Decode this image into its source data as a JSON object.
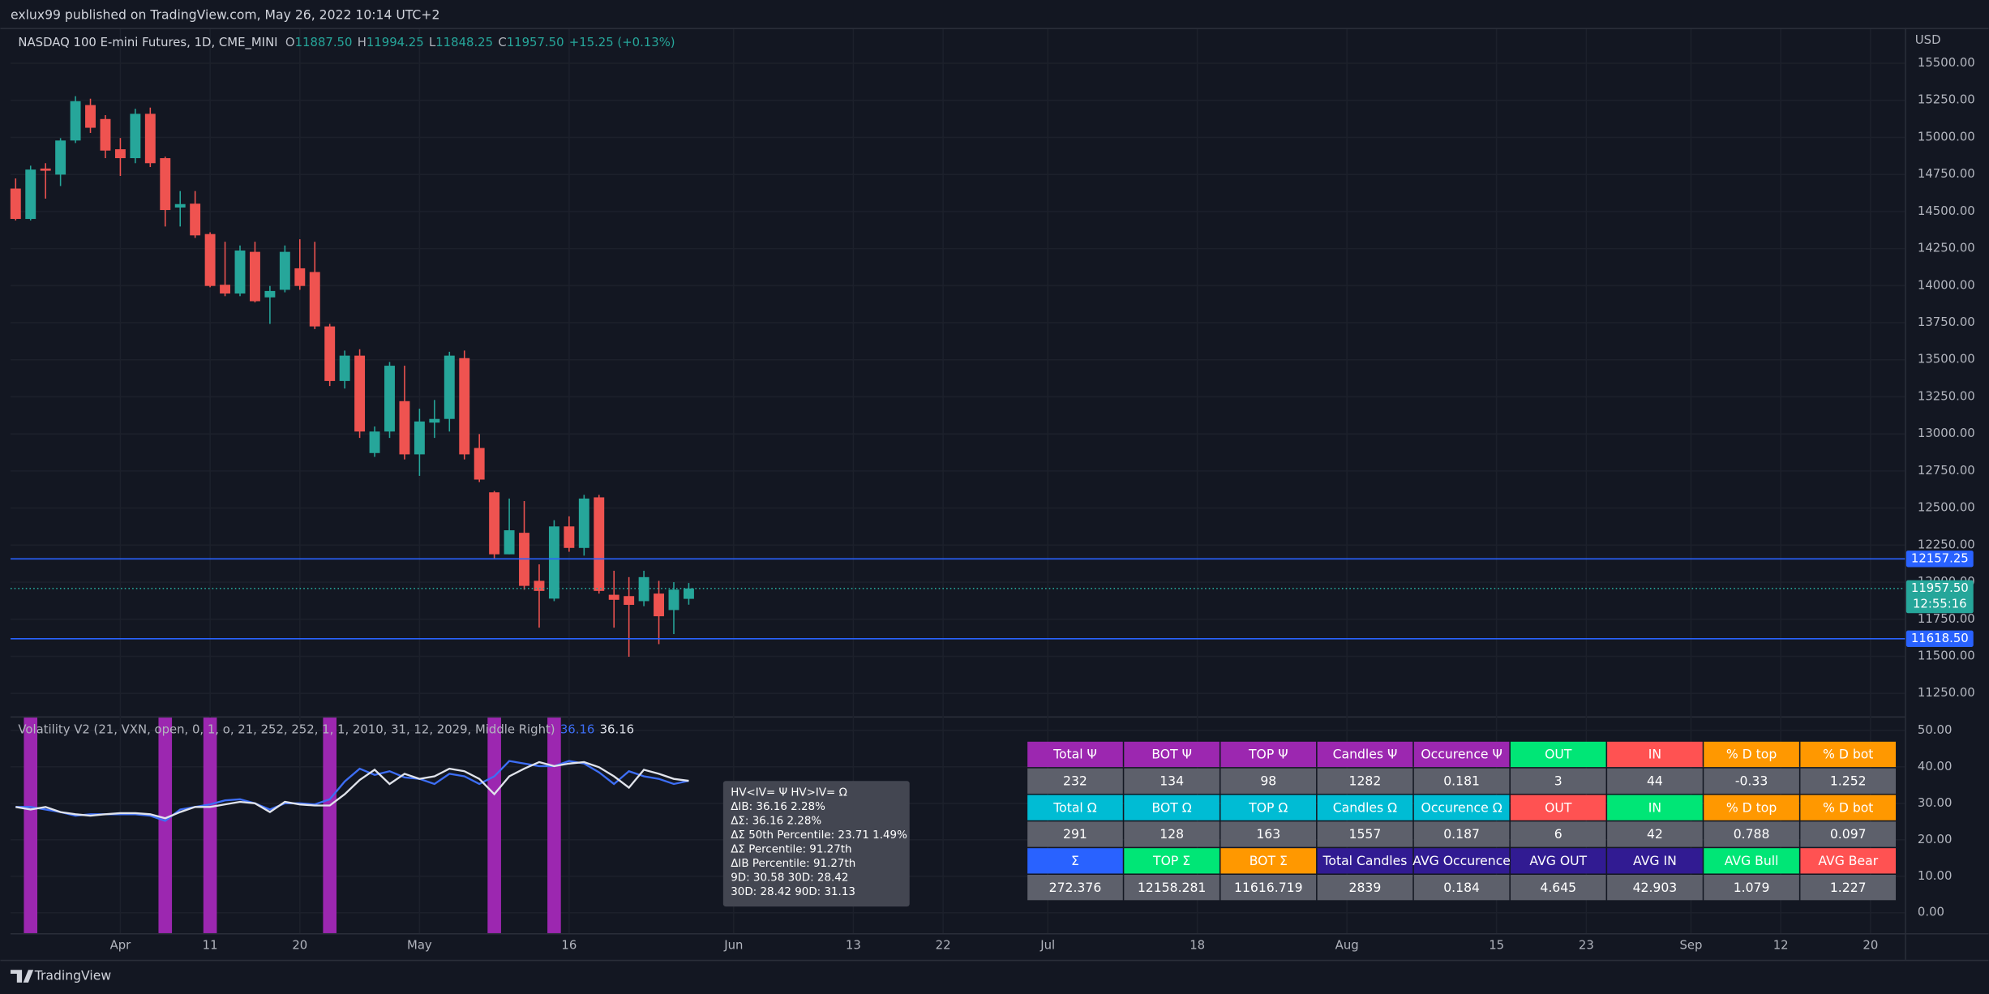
{
  "header": {
    "published": "exlux99 published on TradingView.com, May 26, 2022 10:14 UTC+2",
    "footer": "TradingView"
  },
  "chart_data": [
    {
      "type": "candlestick",
      "title": "NASDAQ 100 E-mini Futures, 1D, CME_MINI",
      "currency": "USD",
      "legend": [
        {
          "key": "O",
          "text": "11887.50"
        },
        {
          "key": "H",
          "text": "11994.25"
        },
        {
          "key": "L",
          "text": "11848.25"
        },
        {
          "key": "C",
          "text": "11957.50"
        }
      ],
      "change": "+15.25 (+0.13%)",
      "up_color": "#26a69a",
      "down_color": "#ef5350",
      "grid": true,
      "x": [
        0,
        1,
        2,
        3,
        4,
        5,
        6,
        7,
        8,
        9,
        10,
        11,
        12,
        13,
        14,
        15,
        16,
        17,
        18,
        19,
        20,
        21,
        22,
        23,
        24,
        25,
        26,
        27,
        28,
        29,
        30,
        31,
        32,
        33,
        34,
        35,
        36,
        37,
        38,
        39,
        40,
        41,
        42,
        43,
        44,
        45
      ],
      "open": [
        14655,
        14450,
        14790,
        14749,
        14979,
        15218,
        15124,
        14920,
        14860,
        15159,
        14860,
        14527,
        14553,
        14348,
        14006,
        13947,
        14228,
        13921,
        13972,
        14117,
        14092,
        13725,
        13357,
        13528,
        12871,
        13016,
        13221,
        12862,
        13076,
        13101,
        13511,
        12905,
        12606,
        12188,
        12333,
        12009,
        11889,
        12376,
        12231,
        12572,
        11915,
        11906,
        11872,
        11923,
        11812,
        11887.5
      ],
      "high": [
        14723,
        14809,
        14826,
        14995,
        15278,
        15261,
        15150,
        14996,
        15193,
        15201,
        14870,
        14638,
        14638,
        14360,
        14296,
        14271,
        14296,
        13998,
        14271,
        14313,
        14296,
        13742,
        13562,
        13571,
        13050,
        13485,
        13460,
        13170,
        13229,
        13554,
        13562,
        12999,
        12615,
        12564,
        12547,
        12120,
        12418,
        12444,
        12589,
        12589,
        12077,
        12034,
        12077,
        12009,
        12000,
        11994.25
      ],
      "low": [
        14440,
        14440,
        14587,
        14672,
        14962,
        15030,
        14860,
        14740,
        14826,
        14800,
        14399,
        14399,
        14322,
        13989,
        13929,
        13929,
        13887,
        13742,
        13955,
        13972,
        13707,
        13323,
        13306,
        12973,
        12845,
        12973,
        12828,
        12717,
        12973,
        13016,
        12828,
        12675,
        12162,
        12188,
        11949,
        11693,
        11872,
        12205,
        12179,
        11923,
        11693,
        11497,
        11838,
        11582,
        11650,
        11848.25
      ],
      "close": [
        14450,
        14783,
        14775,
        14979,
        15244,
        15065,
        14911,
        14860,
        15159,
        14826,
        14510,
        14550,
        14339,
        13998,
        13947,
        14237,
        13895,
        13964,
        14228,
        13998,
        13725,
        13357,
        13528,
        13016,
        13016,
        13460,
        12862,
        13084,
        13101,
        13528,
        12862,
        12692,
        12188,
        12350,
        11975,
        11941,
        12376,
        12231,
        12564,
        11941,
        11881,
        11847,
        12034,
        11770,
        11950,
        11957.5
      ],
      "xlim": [
        -0.34,
        126.3
      ],
      "xticks": [
        {
          "value": 7,
          "label": "Apr"
        },
        {
          "value": 13,
          "label": "11"
        },
        {
          "value": 19,
          "label": "20"
        },
        {
          "value": 27,
          "label": "May"
        },
        {
          "value": 37,
          "label": "16"
        },
        {
          "value": 48,
          "label": "Jun"
        },
        {
          "value": 56,
          "label": "13"
        },
        {
          "value": 62,
          "label": "22"
        },
        {
          "value": 69,
          "label": "Jul"
        },
        {
          "value": 79,
          "label": "18"
        },
        {
          "value": 89,
          "label": "Aug"
        },
        {
          "value": 99,
          "label": "15"
        },
        {
          "value": 105,
          "label": "23"
        },
        {
          "value": 112,
          "label": "Sep"
        },
        {
          "value": 118,
          "label": "12"
        },
        {
          "value": 124,
          "label": "20"
        }
      ],
      "ylim": [
        11095,
        15730
      ],
      "yticks": [
        {
          "value": 15500,
          "label": "15500.00"
        },
        {
          "value": 15250,
          "label": "15250.00"
        },
        {
          "value": 15000,
          "label": "15000.00"
        },
        {
          "value": 14750,
          "label": "14750.00"
        },
        {
          "value": 14500,
          "label": "14500.00"
        },
        {
          "value": 14250,
          "label": "14250.00"
        },
        {
          "value": 14000,
          "label": "14000.00"
        },
        {
          "value": 13750,
          "label": "13750.00"
        },
        {
          "value": 13500,
          "label": "13500.00"
        },
        {
          "value": 13250,
          "label": "13250.00"
        },
        {
          "value": 13000,
          "label": "13000.00"
        },
        {
          "value": 12750,
          "label": "12750.00"
        },
        {
          "value": 12500,
          "label": "12500.00"
        },
        {
          "value": 12250,
          "label": "12250.00"
        },
        {
          "value": 12000,
          "label": "12000.00"
        },
        {
          "value": 11750,
          "label": "11750.00"
        },
        {
          "value": 11500,
          "label": "11500.00"
        },
        {
          "value": 11250,
          "label": "11250.00"
        }
      ],
      "price_lines": [
        {
          "value": 12157.25,
          "label": "12157.25",
          "color": "#2962ff"
        },
        {
          "value": 11618.5,
          "label": "11618.50",
          "color": "#2962ff"
        }
      ],
      "last_price": {
        "value": 11957.5,
        "label": "11957.50",
        "countdown": "12:55:16",
        "color": "#26a69a"
      }
    },
    {
      "type": "line",
      "title": "Volatility V2 (21, VXN, open, 0, 1, o, 21, 252, 252, 1, 1, 2010, 31, 12, 2029, Middle Right)",
      "series": [
        {
          "color": "#3d6ef5",
          "last_label": "36.16",
          "values": [
            29,
            29,
            28.3,
            27.6,
            26.6,
            27,
            27,
            27,
            27,
            26.6,
            25.2,
            28.3,
            29,
            29.7,
            30.8,
            31.1,
            30,
            28.3,
            30,
            30,
            29.7,
            31.1,
            36,
            39.5,
            37.8,
            38.8,
            37.1,
            36.7,
            35.3,
            38.1,
            37.4,
            35.3,
            37.4,
            41.6,
            40.9,
            40.2,
            40.2,
            41.6,
            40.9,
            38.5,
            35.3,
            38.8,
            37.4,
            36.7,
            35.3,
            36.16
          ]
        },
        {
          "color": "#e0e3eb",
          "last_label": "36.16",
          "values": [
            29,
            28.3,
            29,
            27.6,
            27,
            26.6,
            27,
            27.3,
            27.3,
            27,
            25.9,
            27.6,
            29,
            29,
            29.7,
            30.4,
            30,
            27.6,
            30.4,
            29.7,
            29.4,
            29.4,
            32.5,
            36.4,
            39.2,
            35.3,
            38.1,
            36.7,
            37.4,
            39.5,
            38.8,
            36.7,
            32.5,
            37.4,
            39.5,
            41.3,
            40.2,
            40.9,
            41.3,
            39.9,
            37.4,
            34.3,
            39.2,
            38.1,
            36.7,
            36.16
          ]
        }
      ],
      "signals": [
        1,
        10,
        13,
        21,
        32,
        36
      ],
      "signal_color": "#9c27b0",
      "grid": true,
      "ylim": [
        -5.6,
        53.5
      ],
      "yticks": [
        {
          "value": 50,
          "label": "50.00"
        },
        {
          "value": 40,
          "label": "40.00"
        },
        {
          "value": 30,
          "label": "30.00"
        },
        {
          "value": 20,
          "label": "20.00"
        },
        {
          "value": 10,
          "label": "10.00"
        },
        {
          "value": 0,
          "label": "0.00"
        }
      ],
      "annotation": [
        "HV<IV= Ψ  HV>IV= Ω",
        "ΔIB: 36.16  2.28%",
        "ΔΣ: 36.16  2.28%",
        "ΔΣ 50th Percentile: 23.71  1.49%",
        "ΔΣ Percentile: 91.27th",
        "ΔIB Percentile: 91.27th",
        "9D: 30.58  30D: 28.42",
        "30D: 28.42  90D: 31.13"
      ]
    }
  ],
  "table": {
    "rows": [
      [
        {
          "text": "Total Ψ",
          "color": "#9c27b0"
        },
        {
          "text": "BOT Ψ",
          "color": "#9c27b0"
        },
        {
          "text": "TOP Ψ",
          "color": "#9c27b0"
        },
        {
          "text": "Candles Ψ",
          "color": "#9c27b0"
        },
        {
          "text": "Occurence Ψ",
          "color": "#9c27b0"
        },
        {
          "text": "OUT",
          "color": "#00e676"
        },
        {
          "text": "IN",
          "color": "#ff5252"
        },
        {
          "text": "% D top",
          "color": "#ff9800"
        },
        {
          "text": "% D bot",
          "color": "#ff9800"
        }
      ],
      [
        {
          "text": "232",
          "color": "#5d606b"
        },
        {
          "text": "134",
          "color": "#5d606b"
        },
        {
          "text": "98",
          "color": "#5d606b"
        },
        {
          "text": "1282",
          "color": "#5d606b"
        },
        {
          "text": "0.181",
          "color": "#5d606b"
        },
        {
          "text": "3",
          "color": "#5d606b"
        },
        {
          "text": "44",
          "color": "#5d606b"
        },
        {
          "text": "-0.33",
          "color": "#5d606b"
        },
        {
          "text": "1.252",
          "color": "#5d606b"
        }
      ],
      [
        {
          "text": "Total Ω",
          "color": "#00bcd4"
        },
        {
          "text": "BOT Ω",
          "color": "#00bcd4"
        },
        {
          "text": "TOP Ω",
          "color": "#00bcd4"
        },
        {
          "text": "Candles Ω",
          "color": "#00bcd4"
        },
        {
          "text": "Occurence Ω",
          "color": "#00bcd4"
        },
        {
          "text": "OUT",
          "color": "#ff5252"
        },
        {
          "text": "IN",
          "color": "#00e676"
        },
        {
          "text": "% D top",
          "color": "#ff9800"
        },
        {
          "text": "% D bot",
          "color": "#ff9800"
        }
      ],
      [
        {
          "text": "291",
          "color": "#5d606b"
        },
        {
          "text": "128",
          "color": "#5d606b"
        },
        {
          "text": "163",
          "color": "#5d606b"
        },
        {
          "text": "1557",
          "color": "#5d606b"
        },
        {
          "text": "0.187",
          "color": "#5d606b"
        },
        {
          "text": "6",
          "color": "#5d606b"
        },
        {
          "text": "42",
          "color": "#5d606b"
        },
        {
          "text": "0.788",
          "color": "#5d606b"
        },
        {
          "text": "0.097",
          "color": "#5d606b"
        }
      ],
      [
        {
          "text": "Σ",
          "color": "#2962ff"
        },
        {
          "text": "TOP Σ",
          "color": "#00e676"
        },
        {
          "text": "BOT Σ",
          "color": "#ff9800"
        },
        {
          "text": "Total Candles",
          "color": "#311b92"
        },
        {
          "text": "AVG Occurence",
          "color": "#311b92"
        },
        {
          "text": "AVG OUT",
          "color": "#311b92"
        },
        {
          "text": "AVG IN",
          "color": "#311b92"
        },
        {
          "text": "AVG Bull",
          "color": "#00e676"
        },
        {
          "text": "AVG Bear",
          "color": "#ff5252"
        }
      ],
      [
        {
          "text": "272.376",
          "color": "#5d606b"
        },
        {
          "text": "12158.281",
          "color": "#5d606b"
        },
        {
          "text": "11616.719",
          "color": "#5d606b"
        },
        {
          "text": "2839",
          "color": "#5d606b"
        },
        {
          "text": "0.184",
          "color": "#5d606b"
        },
        {
          "text": "4.645",
          "color": "#5d606b"
        },
        {
          "text": "42.903",
          "color": "#5d606b"
        },
        {
          "text": "1.079",
          "color": "#5d606b"
        },
        {
          "text": "1.227",
          "color": "#5d606b"
        }
      ]
    ]
  }
}
